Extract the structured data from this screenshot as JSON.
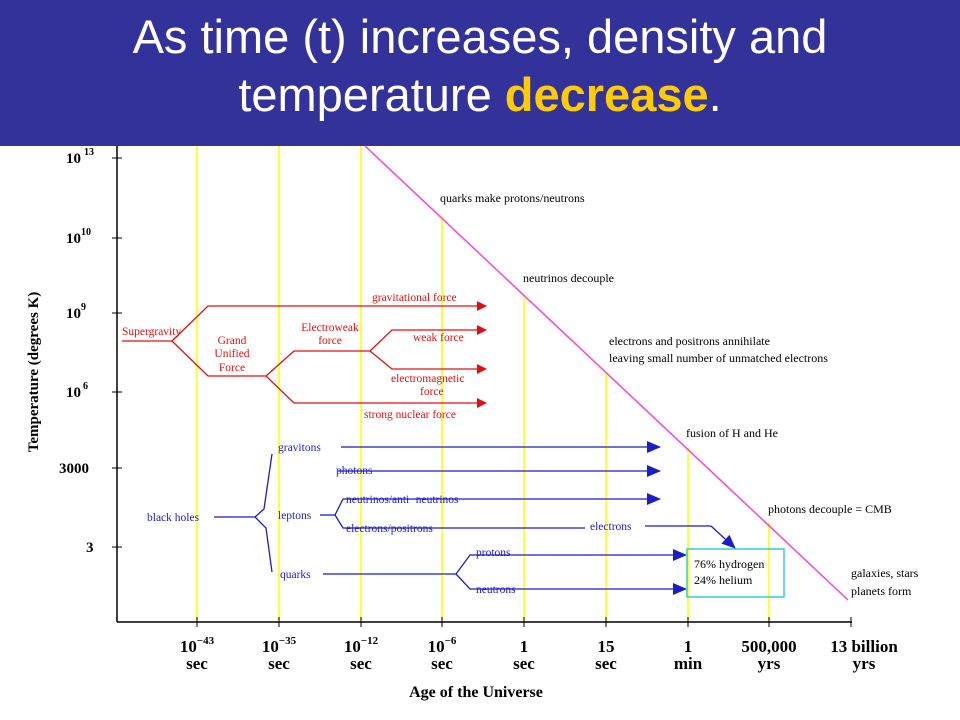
{
  "title": {
    "line1": "As time (t) increases, density and",
    "line2_prefix": "temperature ",
    "highlight": "decrease",
    "line2_suffix": "."
  },
  "colors": {
    "header_bg": "#32329a",
    "title_text": "#ffffff",
    "highlight": "#ffcc00",
    "force_arrows": "#e01010",
    "particle_arrows": "#1c1cc8",
    "epoch_lines": "#ffff33",
    "cooling_line": "#ff44cc",
    "box": "#33ccdd"
  },
  "axes": {
    "ylabel": "Temperature (degrees K)",
    "xlabel": "Age of the Universe",
    "yticks": [
      {
        "base": "10",
        "exp": "13"
      },
      {
        "base": "10",
        "exp": "10"
      },
      {
        "base": "10",
        "exp": "9"
      },
      {
        "base": "10",
        "exp": "6"
      },
      {
        "base": "3000",
        "exp": ""
      },
      {
        "base": "3",
        "exp": ""
      }
    ],
    "xticks": [
      {
        "top": "10",
        "exp": "−43",
        "bottom": "sec"
      },
      {
        "top": "10",
        "exp": "−35",
        "bottom": "sec"
      },
      {
        "top": "10",
        "exp": "−12",
        "bottom": "sec"
      },
      {
        "top": "10",
        "exp": "−6",
        "bottom": "sec"
      },
      {
        "top": "1",
        "exp": "",
        "bottom": "sec"
      },
      {
        "top": "15",
        "exp": "",
        "bottom": "sec"
      },
      {
        "top": "1",
        "exp": "",
        "bottom": "min"
      },
      {
        "top": "500,000",
        "exp": "",
        "bottom": "yrs"
      },
      {
        "top": "13 billion",
        "exp": "",
        "bottom": "yrs"
      }
    ]
  },
  "annotations": {
    "quarks": "quarks make protons/neutrons",
    "neutrinos": "neutrinos decouple",
    "annihilate1": "electrons and positrons annihilate",
    "annihilate2": "leaving small number of unmatched electrons",
    "fusion": "fusion of H and He",
    "cmb": "photons decouple = CMB",
    "galaxies1": "galaxies, stars",
    "galaxies2": "planets form"
  },
  "forces": {
    "supergravity": "Supergravity",
    "guf1": "Grand",
    "guf2": "Unified",
    "guf3": "Force",
    "ew1": "Electroweak",
    "ew2": "force",
    "gravitational": "gravitational force",
    "weak": "weak force",
    "em1": "electromagnetic",
    "em2": "force",
    "strong": "strong nuclear force"
  },
  "particles": {
    "black_holes": "black holes",
    "gravitons": "gravitons",
    "photons": "photons",
    "leptons": "leptons",
    "neutrinos": "neutrinos/anti−neutrinos",
    "electrons_positrons": "electrons/positrons",
    "electrons": "electrons",
    "quarks": "quarks",
    "protons": "protons",
    "neutrons": "neutrons"
  },
  "composition_box": {
    "line1": "76% hydrogen",
    "line2": "24% helium"
  }
}
